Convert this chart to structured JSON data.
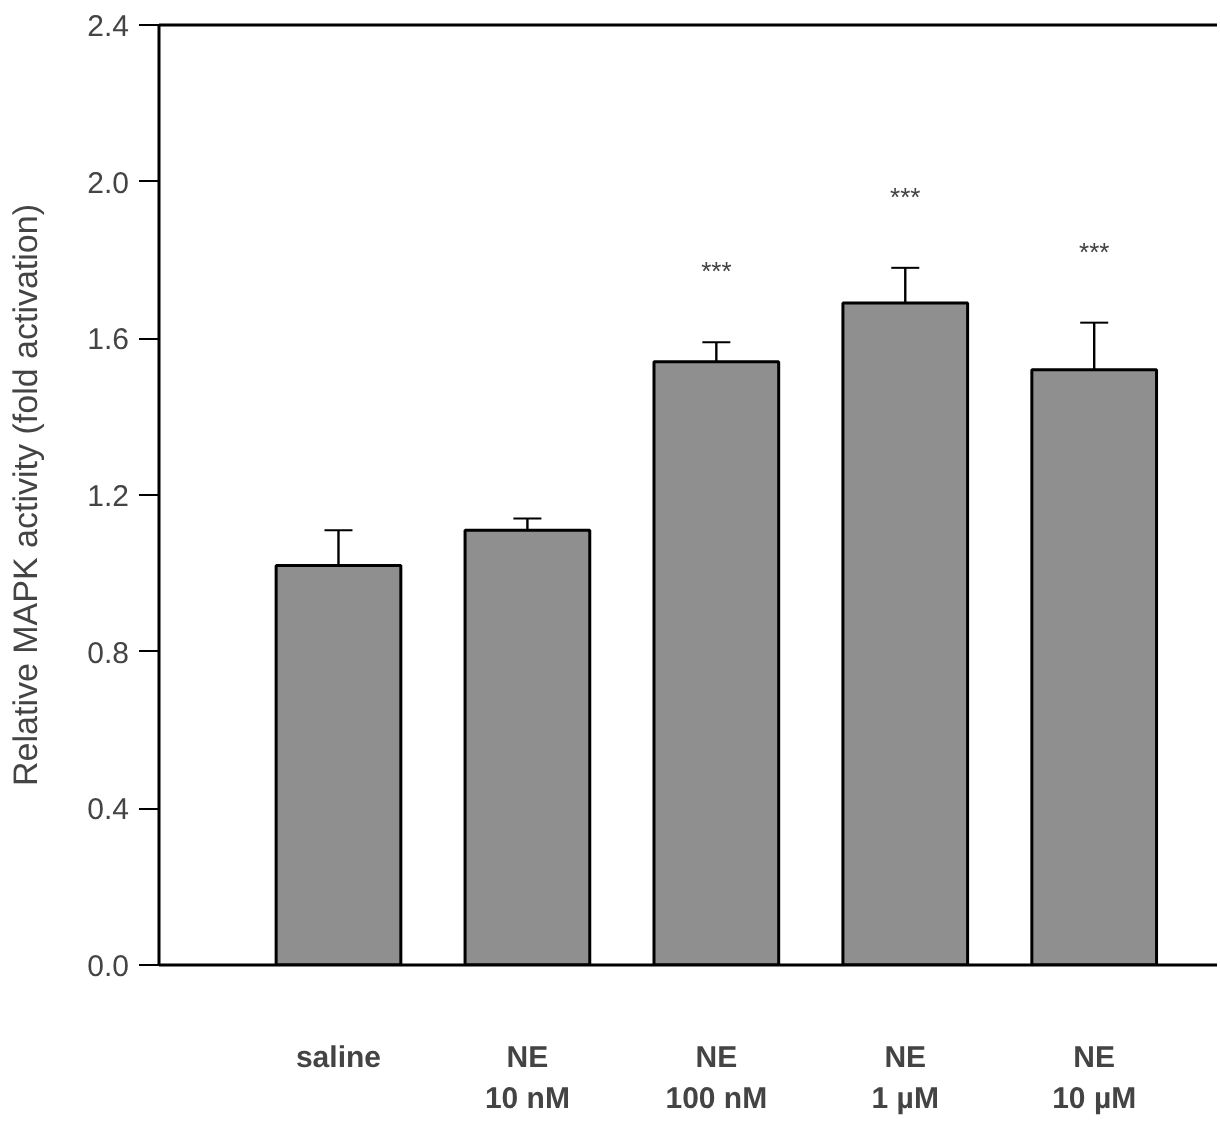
{
  "chart_data": {
    "type": "bar",
    "ylabel": "Relative MAPK activity (fold activation)",
    "categories": [
      "saline",
      "NE\n10 nM",
      "NE\n100 nM",
      "NE\n1 µM",
      "NE\n10 µM"
    ],
    "values": [
      1.02,
      1.11,
      1.54,
      1.69,
      1.52
    ],
    "errors": [
      0.09,
      0.03,
      0.05,
      0.09,
      0.12
    ],
    "color": "#8f8f8f",
    "ylim": [
      0,
      2.4
    ],
    "yticks": [
      {
        "value": 0,
        "label": "0.0"
      },
      {
        "value": 0.4,
        "label": "0.4"
      },
      {
        "value": 0.8,
        "label": "0.8"
      },
      {
        "value": 1.2,
        "label": "1.2"
      },
      {
        "value": 1.6,
        "label": "1.6"
      },
      {
        "value": 2.0,
        "label": "2.0"
      },
      {
        "value": 2.4,
        "label": "2.4"
      }
    ],
    "annotations": [
      {
        "text": "***",
        "x": "NE\n100 nM",
        "y": 1.59
      },
      {
        "text": "***",
        "x": "NE\n1 µM",
        "y": 1.78
      },
      {
        "text": "***",
        "x": "NE\n10 µM",
        "y": 1.64
      }
    ],
    "grid": false
  }
}
